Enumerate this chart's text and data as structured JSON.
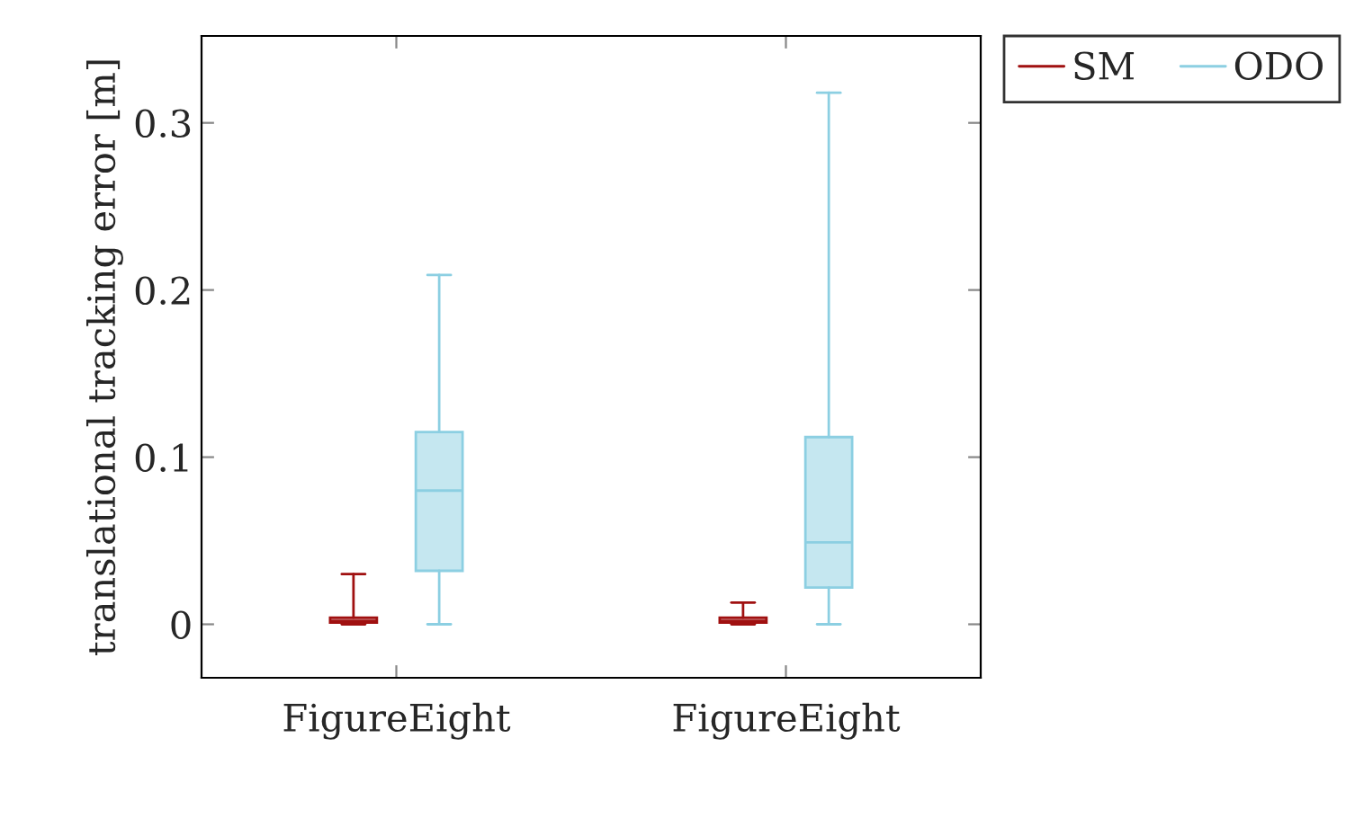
{
  "chart_data": {
    "type": "box",
    "ylabel": "translational tracking error [m]",
    "categories": [
      "FigureEight",
      "FigureEight"
    ],
    "series": [
      {
        "name": "SM",
        "color": "#a01010",
        "boxes": [
          {
            "low": 0,
            "q1": 0.001,
            "median": 0.002,
            "q3": 0.004,
            "high": 0.03
          },
          {
            "low": 0,
            "q1": 0.001,
            "median": 0.002,
            "q3": 0.004,
            "high": 0.013
          }
        ]
      },
      {
        "name": "ODO",
        "color": "#8ccfe2",
        "boxes": [
          {
            "low": 0,
            "q1": 0.032,
            "median": 0.08,
            "q3": 0.115,
            "high": 0.209
          },
          {
            "low": 0,
            "q1": 0.022,
            "median": 0.049,
            "q3": 0.112,
            "high": 0.318
          }
        ]
      }
    ],
    "ylim": [
      -0.032,
      0.352
    ],
    "yticks": [
      0,
      0.1,
      0.2,
      0.3
    ],
    "grid": false,
    "legend": "top right"
  }
}
